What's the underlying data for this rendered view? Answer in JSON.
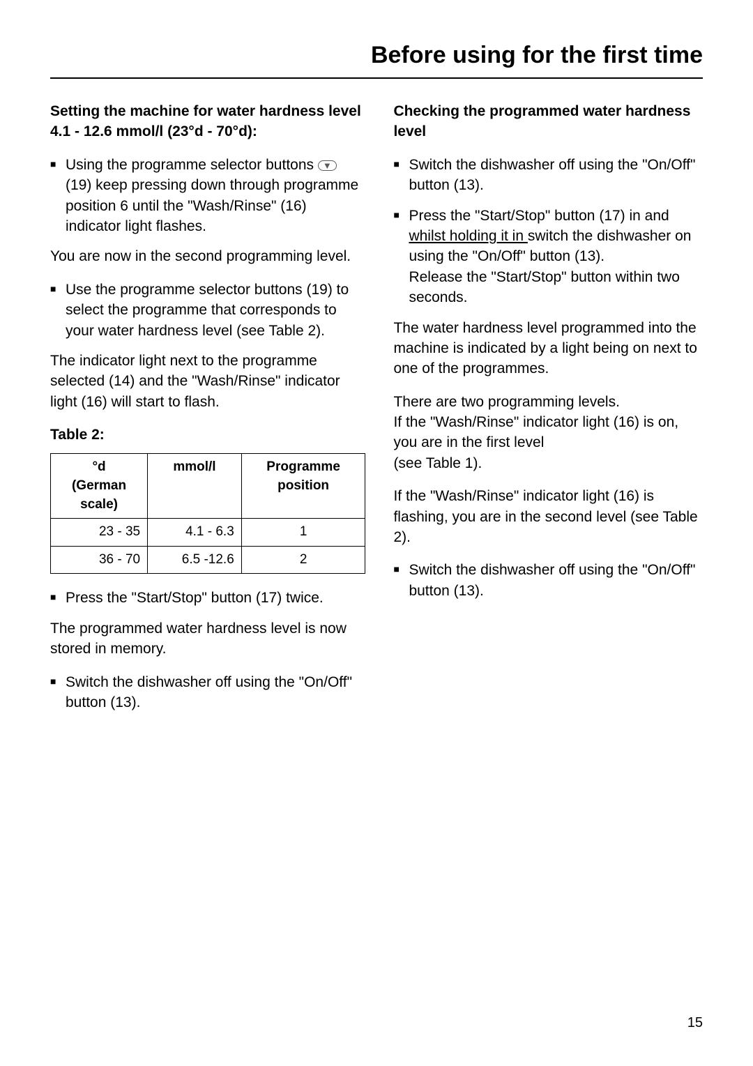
{
  "header": {
    "title": "Before using for the first time"
  },
  "left": {
    "section1_title": "Setting the machine for water hardness level 4.1 - 12.6 mmol/l (23°d - 70°d):",
    "bullet1": "Using the programme selector buttons ",
    "bullet1b": " (19) keep pressing down through programme position 6 until the \"Wash/Rinse\" (16) indicator light flashes.",
    "para1": "You are now in the second programming level.",
    "bullet2": "Use the programme selector buttons (19) to select the programme that corresponds to your water hardness level (see Table 2).",
    "para2": "The indicator light next to the programme selected (14) and the \"Wash/Rinse\" indicator light (16) will start to flash.",
    "table_label": "Table 2:",
    "table": {
      "columns": [
        "°d (German scale)",
        "mmol/l",
        "Programme position"
      ],
      "rows": [
        [
          "23 - 35",
          "4.1 -  6.3",
          "1"
        ],
        [
          "36 - 70",
          "6.5 -12.6",
          "2"
        ]
      ]
    },
    "bullet3": "Press the \"Start/Stop\" button (17) twice.",
    "para3": "The programmed water hardness level is now stored in memory.",
    "bullet4": "Switch the dishwasher off using the \"On/Off\" button (13)."
  },
  "right": {
    "section1_title": "Checking the programmed water hardness level",
    "bullet1": "Switch the dishwasher off using the \"On/Off\" button (13).",
    "bullet2a": "Press the \"Start/Stop\" button (17) in and ",
    "bullet2_underline": "whilst holding it in ",
    "bullet2b": " switch the dishwasher on using the \"On/Off\" button (13).",
    "bullet2c": "Release the \"Start/Stop\" button within two seconds.",
    "para1": "The water hardness level programmed into the machine is indicated by a light being on next to one of the programmes.",
    "para2": "There are two programming levels.",
    "para2b": "If the \"Wash/Rinse\" indicator light (16) is on, you are in the first level",
    "para2c": "(see Table 1).",
    "para3": "If the \"Wash/Rinse\" indicator light (16) is flashing, you are in the second level (see Table 2).",
    "bullet3": "Switch the dishwasher off using the \"On/Off\" button (13)."
  },
  "page_number": "15",
  "icon_glyph": "▼"
}
